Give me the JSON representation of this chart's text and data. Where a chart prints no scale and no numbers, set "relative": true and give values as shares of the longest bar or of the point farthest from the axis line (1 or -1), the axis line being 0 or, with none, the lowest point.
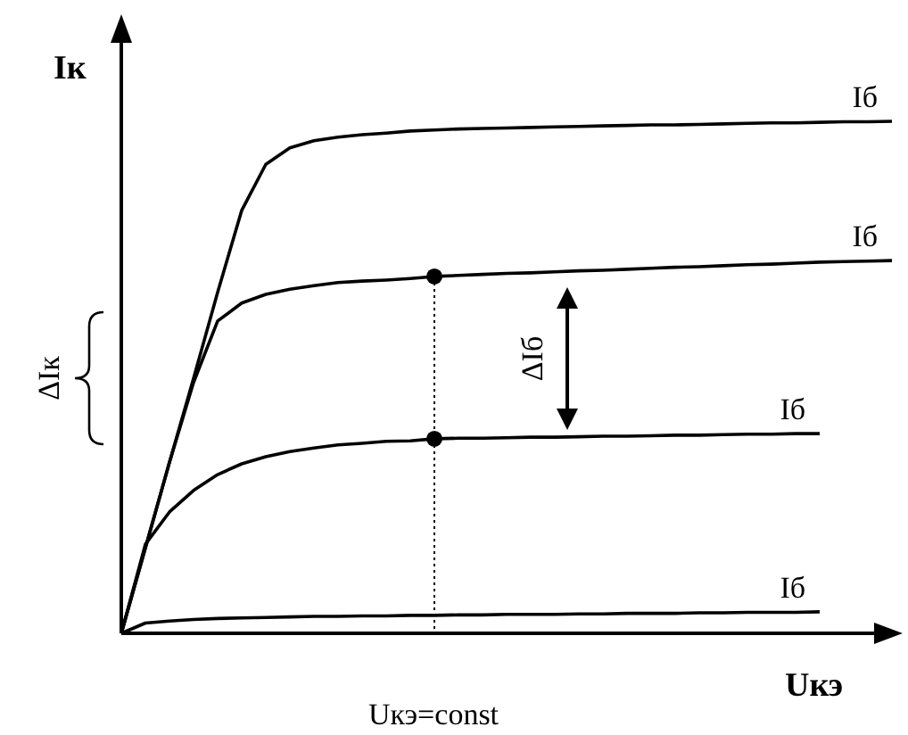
{
  "chart_data": {
    "type": "line",
    "relative": true,
    "ylabel": "Iк",
    "xlabel": "Uкэ",
    "categories": [
      null,
      null,
      null,
      null,
      null,
      null,
      null,
      null,
      null,
      null,
      null,
      null,
      null,
      null,
      null,
      null,
      null,
      null,
      null,
      null,
      null,
      null,
      null,
      null,
      null,
      null,
      null,
      null,
      null,
      null,
      null,
      null,
      null
    ],
    "series": [
      {
        "name": "Iб",
        "color": "#000000",
        "values": [
          0,
          0.167,
          0.334,
          0.498,
          0.666,
          0.826,
          0.916,
          0.948,
          0.962,
          0.969,
          0.974,
          0.977,
          0.981,
          0.983,
          0.985,
          0.986,
          0.987,
          0.988,
          0.989,
          0.99,
          0.991,
          0.992,
          0.993,
          0.993,
          0.994,
          0.995,
          0.996,
          0.997,
          0.997,
          0.998,
          0.999,
          0.999,
          1.0
        ]
      },
      {
        "name": "Iб",
        "color": "#000000",
        "values": [
          0,
          0.167,
          0.334,
          0.49,
          0.61,
          0.645,
          0.662,
          0.672,
          0.679,
          0.685,
          0.688,
          0.69,
          0.693,
          0.697,
          0.699,
          0.701,
          0.703,
          0.704,
          0.706,
          0.708,
          0.709,
          0.711,
          0.713,
          0.715,
          0.716,
          0.718,
          0.72,
          0.721,
          0.723,
          0.725,
          0.726,
          0.727,
          0.728
        ]
      },
      {
        "name": "Iб",
        "color": "#000000",
        "values": [
          0,
          0.174,
          0.237,
          0.279,
          0.31,
          0.331,
          0.345,
          0.355,
          0.362,
          0.368,
          0.371,
          0.375,
          0.376,
          0.38,
          0.381,
          0.381,
          0.382,
          0.383,
          0.383,
          0.384,
          0.385,
          0.385,
          0.386,
          0.387,
          0.387,
          0.388,
          0.389,
          0.389,
          0.39,
          0.39,
          null,
          null,
          null
        ]
      },
      {
        "name": "Iб",
        "color": "#000000",
        "values": [
          0,
          0.02,
          0.024,
          0.027,
          0.029,
          0.03,
          0.031,
          0.032,
          0.033,
          0.033,
          0.034,
          0.034,
          0.035,
          0.035,
          0.036,
          0.036,
          0.037,
          0.037,
          0.037,
          0.038,
          0.038,
          0.039,
          0.039,
          0.039,
          0.04,
          0.04,
          0.041,
          0.041,
          0.041,
          0.042,
          null,
          null,
          null
        ]
      }
    ],
    "annotations": [
      "ΔIк",
      "ΔIб",
      "Uкэ=const"
    ]
  }
}
